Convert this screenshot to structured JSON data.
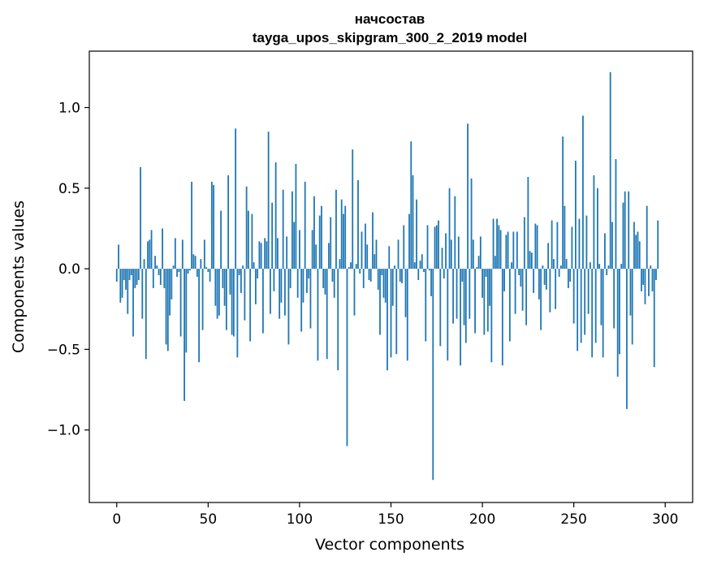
{
  "chart_data": {
    "type": "bar",
    "title": "начсостав",
    "subtitle": "tayga_upos_skipgram_300_2_2019 model",
    "xlabel": "Vector components",
    "ylabel": "Components values",
    "xlim": [
      -15,
      315
    ],
    "ylim": [
      -1.45,
      1.35
    ],
    "xticks": [
      0,
      50,
      100,
      150,
      200,
      250,
      300
    ],
    "xtick_labels": [
      "0",
      "50",
      "100",
      "150",
      "200",
      "250",
      "300"
    ],
    "yticks": [
      -1.0,
      -0.5,
      0.0,
      0.5,
      1.0
    ],
    "ytick_labels": [
      "−1.0",
      "−0.5",
      "0.0",
      "0.5",
      "1.0"
    ],
    "grid": false,
    "bar_color": "#1f77b4",
    "x_start": 0,
    "values": [
      -0.08,
      0.15,
      -0.21,
      -0.18,
      -0.07,
      -0.13,
      -0.28,
      -0.07,
      -0.04,
      -0.42,
      -0.12,
      -0.1,
      -0.07,
      0.63,
      -0.31,
      0.06,
      -0.56,
      0.17,
      0.18,
      0.24,
      -0.12,
      0.08,
      0.02,
      -0.04,
      -0.1,
      0.25,
      -0.12,
      -0.47,
      -0.51,
      -0.29,
      -0.19,
      0.02,
      0.19,
      -0.05,
      -0.02,
      -0.42,
      0.18,
      -0.82,
      -0.52,
      -0.03,
      -0.01,
      0.54,
      0.09,
      0.08,
      -0.05,
      -0.58,
      0.06,
      -0.38,
      0.18,
      0.01,
      -0.02,
      -0.08,
      0.54,
      0.52,
      -0.23,
      -0.31,
      -0.29,
      0.36,
      -0.12,
      -0.23,
      -0.38,
      0.58,
      -0.16,
      -0.41,
      -0.42,
      0.87,
      -0.55,
      -0.04,
      -0.15,
      0.02,
      -0.32,
      0.51,
      0.36,
      -0.45,
      0.34,
      0.04,
      -0.22,
      -0.06,
      0.17,
      0.16,
      -0.4,
      0.19,
      0.17,
      0.85,
      -0.28,
      0.41,
      -0.14,
      0.66,
      0.19,
      -0.31,
      -0.21,
      0.49,
      -0.29,
      0.2,
      -0.47,
      -0.12,
      0.48,
      0.29,
      0.65,
      -0.18,
      0.24,
      -0.39,
      -0.21,
      0.54,
      -0.15,
      -0.06,
      -0.37,
      0.24,
      0.45,
      0.15,
      -0.57,
      0.33,
      0.39,
      -0.12,
      -0.16,
      -0.56,
      0.16,
      0.32,
      -0.08,
      -0.18,
      0.49,
      -0.63,
      0.06,
      0.43,
      0.34,
      0.39,
      -1.1,
      0.01,
      0.04,
      0.74,
      -0.29,
      0.03,
      0.55,
      -0.03,
      0.23,
      -0.12,
      0.28,
      0.15,
      -0.07,
      -0.08,
      0.35,
      0.09,
      0.18,
      -0.13,
      -0.41,
      -0.04,
      -0.18,
      -0.21,
      -0.63,
      0.14,
      -0.55,
      -0.23,
      0.02,
      -0.53,
      0.18,
      -0.08,
      -0.09,
      0.27,
      -0.3,
      -0.57,
      0.34,
      0.79,
      0.58,
      0.04,
      0.43,
      -0.07,
      0.05,
      0.09,
      -0.02,
      -0.45,
      0.27,
      -0.01,
      -0.17,
      -1.31,
      0.26,
      0.27,
      0.3,
      -0.48,
      0.13,
      -0.06,
      0.22,
      -0.57,
      0.5,
      0.18,
      -0.34,
      0.45,
      -0.31,
      0.2,
      -0.6,
      -0.08,
      -0.35,
      -0.46,
      0.9,
      -0.31,
      0.56,
      0.18,
      -0.4,
      0.01,
      0.08,
      0.2,
      -0.18,
      -0.41,
      -0.05,
      -0.39,
      -0.23,
      -0.58,
      0.31,
      0.08,
      0.31,
      0.27,
      0.24,
      -0.6,
      -0.14,
      0.21,
      0.23,
      -0.45,
      0.04,
      0.23,
      -0.28,
      0.23,
      -0.04,
      -0.11,
      -0.26,
      0.32,
      -0.35,
      0.57,
      0.11,
      0.1,
      -0.15,
      0.28,
      0.27,
      -0.19,
      -0.38,
      0.02,
      -0.1,
      -0.13,
      0.16,
      -0.27,
      0.3,
      0.06,
      -0.25,
      0.29,
      -0.05,
      0.02,
      0.82,
      0.39,
      0.06,
      -0.12,
      -0.08,
      0.26,
      -0.34,
      0.67,
      -0.51,
      0.31,
      -0.46,
      0.95,
      -0.41,
      0.33,
      -0.28,
      0.04,
      -0.55,
      0.58,
      -0.46,
      0.5,
      0.03,
      -0.35,
      -0.55,
      0.22,
      -0.04,
      0.02,
      1.22,
      0.29,
      -0.37,
      0.68,
      -0.67,
      -0.53,
      0.03,
      0.41,
      0.48,
      -0.87,
      0.48,
      -0.29,
      -0.47,
      0.29,
      0.21,
      0.23,
      0.17,
      -0.14,
      -0.1,
      -0.22,
      0.39,
      -0.17,
      0.02,
      -0.14,
      -0.61,
      -0.07,
      0.3
    ]
  }
}
